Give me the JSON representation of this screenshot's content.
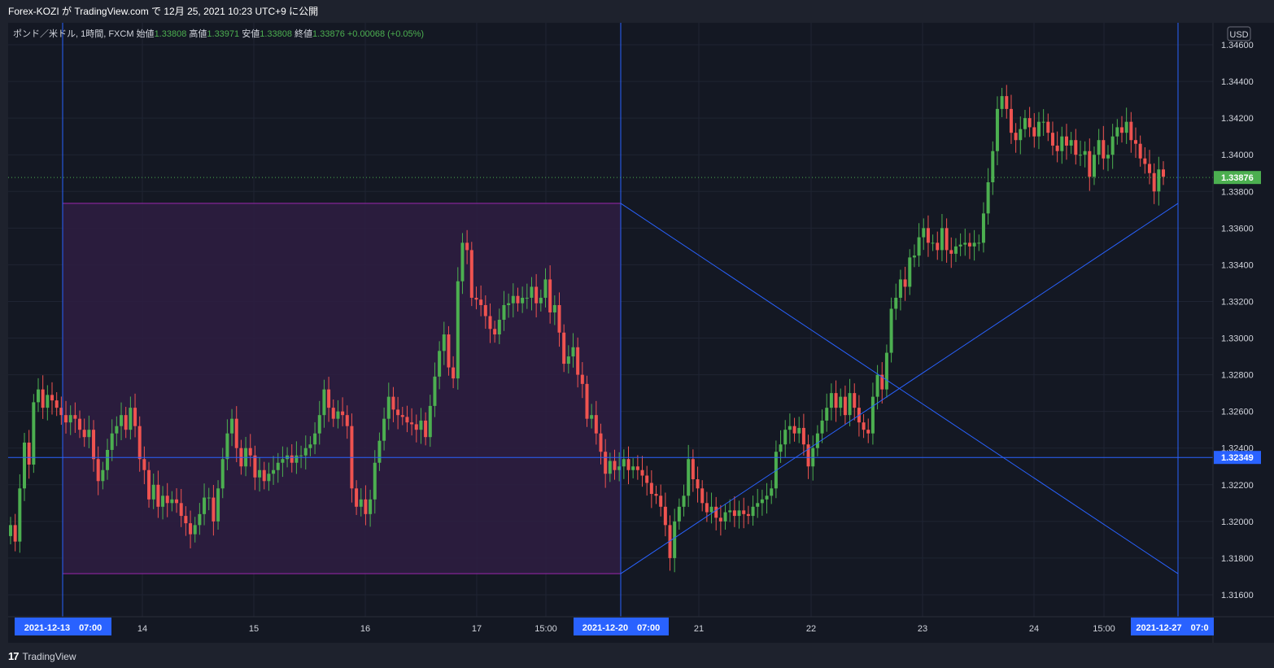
{
  "header": {
    "publish_line": "Forex-KOZI が TradingView.com で 12月 25, 2021 10:23 UTC+9 に公開"
  },
  "legend": {
    "symbol": "ポンド／米ドル, 1時間, FXCM",
    "open_label": "始値",
    "open": "1.33808",
    "high_label": "高値",
    "high": "1.33971",
    "low_label": "安値",
    "low": "1.33808",
    "close_label": "終値",
    "close": "1.33876",
    "change": "+0.00068 (+0.05%)"
  },
  "price_axis": {
    "currency": "USD",
    "ticks": [
      "1.34600",
      "1.34400",
      "1.34200",
      "1.34000",
      "1.33800",
      "1.33600",
      "1.33400",
      "1.33200",
      "1.33000",
      "1.32800",
      "1.32600",
      "1.32400",
      "1.32200",
      "1.32000",
      "1.31800",
      "1.31600"
    ],
    "last_price_label": "1.33876",
    "crosshair_price_label": "1.32349"
  },
  "time_axis": {
    "labels": [
      "14",
      "15",
      "16",
      "17",
      "15:00",
      "21",
      "22",
      "23",
      "24",
      "15:00"
    ],
    "markers": [
      "2021-12-13　07:00",
      "2021-12-20　07:00",
      "2021-12-27　07:0"
    ]
  },
  "colors": {
    "background": "#141823",
    "up": "#4caf50",
    "down": "#ef5350",
    "box_fill": "#2e1d42",
    "box_border": "#9c27b0",
    "trend_line": "#2962ff",
    "crosshair": "#2962ff",
    "last_price": "#4caf50",
    "grid": "#1f2433"
  },
  "footer": {
    "brand_mark": "17",
    "brand": "TradingView"
  },
  "chart_data": {
    "type": "candlestick",
    "title": "ポンド／米ドル, 1時間, FXCM",
    "ylim": [
      1.3148,
      1.3472
    ],
    "grid": true,
    "last_price": 1.33876,
    "horizontal_line": 1.32349,
    "range_box": {
      "from": "2021-12-13 07:00",
      "to": "2021-12-20 07:00",
      "high": 1.33735,
      "low": 1.31715
    },
    "trend_lines": [
      {
        "from": [
          "2021-12-20 07:00",
          1.33735
        ],
        "to": [
          "2021-12-27 07:00",
          1.31715
        ]
      },
      {
        "from": [
          "2021-12-20 07:00",
          1.31715
        ],
        "to": [
          "2021-12-27 07:00",
          1.33735
        ]
      }
    ],
    "closes": [
      1.3198,
      1.3189,
      1.3218,
      1.3243,
      1.3231,
      1.3265,
      1.3272,
      1.3262,
      1.3269,
      1.3266,
      1.3262,
      1.3258,
      1.3254,
      1.3258,
      1.3256,
      1.325,
      1.3246,
      1.325,
      1.3234,
      1.3222,
      1.3228,
      1.3239,
      1.3248,
      1.3252,
      1.3258,
      1.325,
      1.3262,
      1.3252,
      1.3234,
      1.3228,
      1.3212,
      1.322,
      1.3208,
      1.3214,
      1.321,
      1.3212,
      1.321,
      1.3203,
      1.3199,
      1.3193,
      1.3198,
      1.3204,
      1.3213,
      1.3213,
      1.32,
      1.3218,
      1.3234,
      1.3248,
      1.3256,
      1.324,
      1.323,
      1.324,
      1.3236,
      1.3224,
      1.3228,
      1.3222,
      1.3226,
      1.3228,
      1.3232,
      1.3234,
      1.3236,
      1.3232,
      1.3236,
      1.3236,
      1.324,
      1.3242,
      1.3248,
      1.3258,
      1.3272,
      1.3262,
      1.3256,
      1.326,
      1.3258,
      1.3252,
      1.3218,
      1.3208,
      1.3212,
      1.3204,
      1.3212,
      1.3232,
      1.3244,
      1.3256,
      1.3268,
      1.3261,
      1.3258,
      1.3257,
      1.3254,
      1.3253,
      1.325,
      1.3255,
      1.3246,
      1.3263,
      1.3279,
      1.3293,
      1.3302,
      1.3284,
      1.3278,
      1.3331,
      1.3352,
      1.3348,
      1.3322,
      1.3321,
      1.3318,
      1.3312,
      1.3305,
      1.3302,
      1.331,
      1.3318,
      1.3319,
      1.3323,
      1.3319,
      1.3322,
      1.3322,
      1.3328,
      1.3319,
      1.3322,
      1.3332,
      1.3314,
      1.3318,
      1.3303,
      1.3286,
      1.329,
      1.3295,
      1.328,
      1.3275,
      1.3256,
      1.3258,
      1.3248,
      1.3238,
      1.3226,
      1.3233,
      1.3228,
      1.323,
      1.3234,
      1.3228,
      1.323,
      1.3228,
      1.3225,
      1.3221,
      1.3215,
      1.3214,
      1.3208,
      1.3198,
      1.318,
      1.32,
      1.3208,
      1.3214,
      1.3234,
      1.3223,
      1.3218,
      1.321,
      1.3205,
      1.3208,
      1.3202,
      1.32,
      1.3205,
      1.3206,
      1.3203,
      1.3206,
      1.3204,
      1.3203,
      1.3208,
      1.321,
      1.3212,
      1.3214,
      1.3218,
      1.3238,
      1.3242,
      1.325,
      1.3252,
      1.3248,
      1.3251,
      1.3242,
      1.323,
      1.324,
      1.3248,
      1.3255,
      1.3262,
      1.327,
      1.3262,
      1.3268,
      1.3258,
      1.327,
      1.3262,
      1.3254,
      1.325,
      1.3248,
      1.3268,
      1.328,
      1.3272,
      1.3292,
      1.3316,
      1.3322,
      1.3332,
      1.3328,
      1.3344,
      1.3345,
      1.3355,
      1.336,
      1.3352,
      1.3352,
      1.3348,
      1.336,
      1.3348,
      1.3346,
      1.335,
      1.3351,
      1.3352,
      1.335,
      1.3352,
      1.3352,
      1.3368,
      1.3385,
      1.3402,
      1.3425,
      1.3432,
      1.3425,
      1.3412,
      1.3408,
      1.3414,
      1.342,
      1.3415,
      1.341,
      1.3418,
      1.3418,
      1.3412,
      1.3405,
      1.3402,
      1.341,
      1.3405,
      1.3408,
      1.34,
      1.34,
      1.3402,
      1.3388,
      1.34,
      1.3408,
      1.3398,
      1.34,
      1.341,
      1.3415,
      1.3412,
      1.3418,
      1.3408,
      1.3406,
      1.3398,
      1.3395,
      1.339,
      1.338,
      1.3392,
      1.3388
    ]
  }
}
